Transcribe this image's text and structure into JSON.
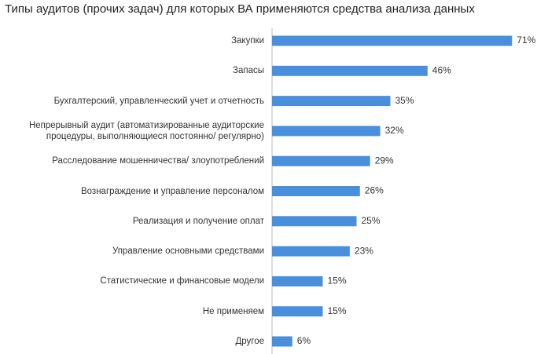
{
  "chart_data": {
    "type": "bar",
    "orientation": "horizontal",
    "title": "Типы аудитов (прочих задач) для которых ВА применяются средства анализа данных",
    "categories": [
      "Закупки",
      "Запасы",
      "Бухгалтерский, управленческий учет и отчетность",
      "Непрерывный аудит (автоматизированные аудиторские процедуры, выполняющиеся постоянно/ регулярно)",
      "Расследование мошенничества/ злоупотреблений",
      "Вознаграждение и управление персоналом",
      "Реализация и получение оплат",
      "Управление основными средствами",
      "Статистические и финансовые модели",
      "Не применяем",
      "Другое"
    ],
    "values": [
      71,
      46,
      35,
      32,
      29,
      26,
      25,
      23,
      15,
      15,
      6
    ],
    "value_labels": [
      "71%",
      "46%",
      "35%",
      "32%",
      "29%",
      "26%",
      "25%",
      "23%",
      "15%",
      "15%",
      "6%"
    ],
    "color": "#4a8fdc"
  }
}
